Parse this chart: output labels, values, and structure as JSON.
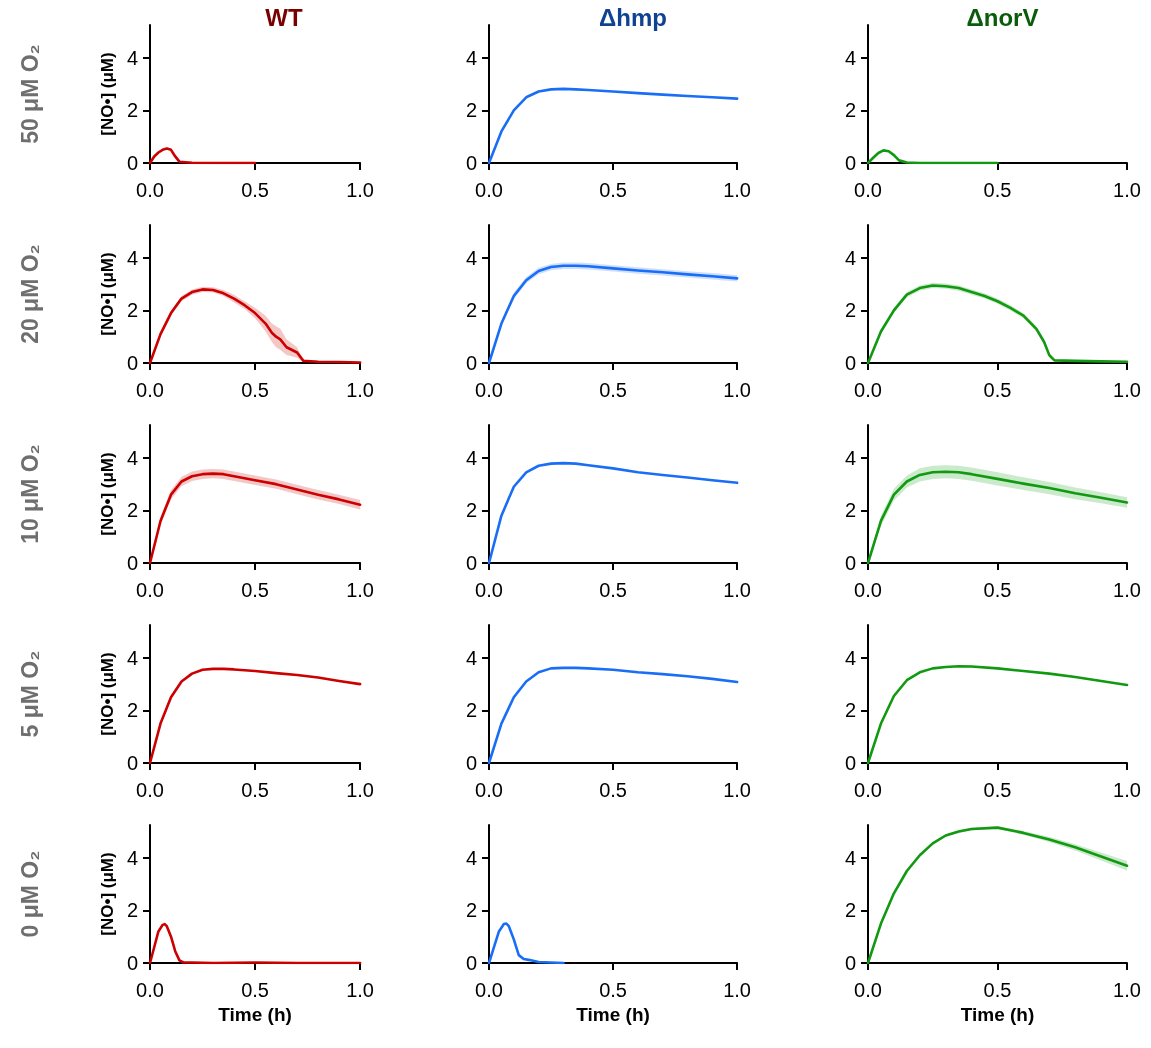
{
  "chart_data": [
    {
      "type": "line",
      "title": "WT",
      "ylabel": "[NO•] (μM)",
      "annotations": [
        "50 μM O₂"
      ],
      "x": [
        0,
        0.02,
        0.04,
        0.06,
        0.08,
        0.1,
        0.12,
        0.14,
        0.2,
        0.3,
        0.4,
        0.5
      ],
      "series": [
        {
          "color": "#cc0000",
          "values": [
            0,
            0.25,
            0.4,
            0.5,
            0.55,
            0.5,
            0.25,
            0.05,
            0.01,
            0,
            0,
            0
          ]
        }
      ],
      "xlim": [
        0,
        1
      ],
      "xticks": [
        {
          "value": 0,
          "label": "0.0"
        },
        {
          "value": 0.5,
          "label": "0.5"
        },
        {
          "value": 1,
          "label": "1.0"
        }
      ],
      "ylim": [
        0,
        5.25
      ],
      "yticks": [
        0,
        2,
        4
      ],
      "grid": false
    },
    {
      "type": "line",
      "title": "Δhmp",
      "x": [
        0,
        0.05,
        0.1,
        0.15,
        0.2,
        0.25,
        0.3,
        0.35,
        0.4,
        0.5,
        0.6,
        0.7,
        0.8,
        0.9,
        1.0
      ],
      "series": [
        {
          "color": "#1a6ef5",
          "values": [
            0,
            1.2,
            2.0,
            2.5,
            2.72,
            2.8,
            2.82,
            2.8,
            2.78,
            2.72,
            2.66,
            2.6,
            2.55,
            2.5,
            2.45
          ]
        }
      ],
      "xlim": [
        0,
        1
      ],
      "xticks": [
        {
          "value": 0,
          "label": "0.0"
        },
        {
          "value": 0.5,
          "label": "0.5"
        },
        {
          "value": 1,
          "label": "1.0"
        }
      ],
      "ylim": [
        0,
        5.25
      ],
      "yticks": [
        0,
        2,
        4
      ],
      "grid": false
    },
    {
      "type": "line",
      "title": "ΔnorV",
      "x": [
        0,
        0.02,
        0.04,
        0.06,
        0.08,
        0.1,
        0.12,
        0.15,
        0.2,
        0.3,
        0.4,
        0.5
      ],
      "series": [
        {
          "color": "#119911",
          "values": [
            0,
            0.2,
            0.38,
            0.48,
            0.45,
            0.3,
            0.1,
            0.02,
            0,
            0,
            0,
            0
          ]
        }
      ],
      "xlim": [
        0,
        1
      ],
      "xticks": [
        {
          "value": 0,
          "label": "0.0"
        },
        {
          "value": 0.5,
          "label": "0.5"
        },
        {
          "value": 1,
          "label": "1.0"
        }
      ],
      "ylim": [
        0,
        5.25
      ],
      "yticks": [
        0,
        2,
        4
      ],
      "grid": false
    },
    {
      "type": "line",
      "ylabel": "[NO•] (μM)",
      "annotations": [
        "20 μM O₂"
      ],
      "x": [
        0,
        0.05,
        0.1,
        0.15,
        0.2,
        0.25,
        0.3,
        0.35,
        0.4,
        0.45,
        0.5,
        0.55,
        0.58,
        0.6,
        0.62,
        0.65,
        0.7,
        0.73,
        0.8,
        0.9,
        1.0
      ],
      "series": [
        {
          "color": "#cc0000",
          "values": [
            0,
            1.1,
            1.9,
            2.45,
            2.7,
            2.8,
            2.78,
            2.65,
            2.45,
            2.2,
            1.9,
            1.5,
            1.15,
            1.0,
            0.9,
            0.6,
            0.4,
            0.08,
            0.05,
            0.04,
            0.02
          ],
          "lower": [
            0,
            1.0,
            1.8,
            2.35,
            2.6,
            2.7,
            2.68,
            2.55,
            2.3,
            2.05,
            1.7,
            1.2,
            0.8,
            0.6,
            0.5,
            0.3,
            0.2,
            0.05,
            0.03,
            0.02,
            0.01
          ],
          "upper": [
            0,
            1.2,
            2.0,
            2.55,
            2.8,
            2.9,
            2.88,
            2.78,
            2.6,
            2.35,
            2.1,
            1.8,
            1.5,
            1.4,
            1.3,
            0.9,
            0.6,
            0.12,
            0.08,
            0.06,
            0.04
          ]
        }
      ],
      "xlim": [
        0,
        1
      ],
      "xticks": [
        {
          "value": 0,
          "label": "0.0"
        },
        {
          "value": 0.5,
          "label": "0.5"
        },
        {
          "value": 1,
          "label": "1.0"
        }
      ],
      "ylim": [
        0,
        5.25
      ],
      "yticks": [
        0,
        2,
        4
      ],
      "grid": false
    },
    {
      "type": "line",
      "x": [
        0,
        0.05,
        0.1,
        0.15,
        0.2,
        0.25,
        0.3,
        0.35,
        0.4,
        0.5,
        0.6,
        0.7,
        0.8,
        0.9,
        1.0
      ],
      "series": [
        {
          "color": "#1a6ef5",
          "values": [
            0,
            1.5,
            2.55,
            3.15,
            3.5,
            3.65,
            3.7,
            3.7,
            3.68,
            3.6,
            3.52,
            3.45,
            3.37,
            3.3,
            3.22
          ],
          "lower": [
            0,
            1.4,
            2.43,
            3.03,
            3.38,
            3.53,
            3.58,
            3.58,
            3.56,
            3.48,
            3.4,
            3.33,
            3.25,
            3.18,
            3.1
          ],
          "upper": [
            0,
            1.6,
            2.67,
            3.27,
            3.62,
            3.77,
            3.82,
            3.82,
            3.8,
            3.72,
            3.64,
            3.57,
            3.49,
            3.42,
            3.34
          ]
        }
      ],
      "xlim": [
        0,
        1
      ],
      "xticks": [
        {
          "value": 0,
          "label": "0.0"
        },
        {
          "value": 0.5,
          "label": "0.5"
        },
        {
          "value": 1,
          "label": "1.0"
        }
      ],
      "ylim": [
        0,
        5.25
      ],
      "yticks": [
        0,
        2,
        4
      ],
      "grid": false
    },
    {
      "type": "line",
      "x": [
        0,
        0.05,
        0.1,
        0.15,
        0.2,
        0.25,
        0.3,
        0.35,
        0.4,
        0.45,
        0.5,
        0.55,
        0.6,
        0.65,
        0.68,
        0.7,
        0.72,
        0.8,
        0.9,
        1.0
      ],
      "series": [
        {
          "color": "#119911",
          "values": [
            0,
            1.2,
            2.0,
            2.6,
            2.85,
            2.95,
            2.92,
            2.85,
            2.7,
            2.55,
            2.35,
            2.1,
            1.8,
            1.3,
            0.8,
            0.3,
            0.1,
            0.08,
            0.06,
            0.05
          ],
          "lower": [
            0,
            1.1,
            1.9,
            2.5,
            2.75,
            2.85,
            2.82,
            2.75,
            2.6,
            2.45,
            2.25,
            2.0,
            1.7,
            1.2,
            0.7,
            0.2,
            0.07,
            0.06,
            0.05,
            0.04
          ],
          "upper": [
            0,
            1.3,
            2.1,
            2.7,
            2.95,
            3.05,
            3.02,
            2.95,
            2.8,
            2.65,
            2.45,
            2.2,
            1.9,
            1.4,
            0.9,
            0.4,
            0.13,
            0.1,
            0.08,
            0.07
          ]
        }
      ],
      "xlim": [
        0,
        1
      ],
      "xticks": [
        {
          "value": 0,
          "label": "0.0"
        },
        {
          "value": 0.5,
          "label": "0.5"
        },
        {
          "value": 1,
          "label": "1.0"
        }
      ],
      "ylim": [
        0,
        5.25
      ],
      "yticks": [
        0,
        2,
        4
      ],
      "grid": false
    },
    {
      "type": "line",
      "ylabel": "[NO•] (μM)",
      "annotations": [
        "10 μM O₂"
      ],
      "x": [
        0,
        0.05,
        0.1,
        0.15,
        0.2,
        0.25,
        0.3,
        0.35,
        0.4,
        0.5,
        0.6,
        0.7,
        0.8,
        0.9,
        1.0
      ],
      "series": [
        {
          "color": "#cc0000",
          "values": [
            0,
            1.6,
            2.6,
            3.1,
            3.3,
            3.38,
            3.4,
            3.38,
            3.3,
            3.15,
            3.0,
            2.8,
            2.6,
            2.42,
            2.22
          ],
          "lower": [
            0,
            1.45,
            2.42,
            2.92,
            3.12,
            3.2,
            3.22,
            3.2,
            3.12,
            2.97,
            2.82,
            2.62,
            2.42,
            2.24,
            2.04
          ],
          "upper": [
            0,
            1.75,
            2.78,
            3.28,
            3.48,
            3.56,
            3.58,
            3.56,
            3.48,
            3.33,
            3.18,
            2.98,
            2.78,
            2.6,
            2.4
          ]
        }
      ],
      "xlim": [
        0,
        1
      ],
      "xticks": [
        {
          "value": 0,
          "label": "0.0"
        },
        {
          "value": 0.5,
          "label": "0.5"
        },
        {
          "value": 1,
          "label": "1.0"
        }
      ],
      "ylim": [
        0,
        5.25
      ],
      "yticks": [
        0,
        2,
        4
      ],
      "grid": false
    },
    {
      "type": "line",
      "x": [
        0,
        0.05,
        0.1,
        0.15,
        0.2,
        0.25,
        0.3,
        0.35,
        0.4,
        0.5,
        0.6,
        0.7,
        0.8,
        0.9,
        1.0
      ],
      "series": [
        {
          "color": "#1a6ef5",
          "values": [
            0,
            1.8,
            2.9,
            3.45,
            3.7,
            3.78,
            3.8,
            3.78,
            3.72,
            3.6,
            3.45,
            3.35,
            3.25,
            3.15,
            3.05
          ]
        }
      ],
      "xlim": [
        0,
        1
      ],
      "xticks": [
        {
          "value": 0,
          "label": "0.0"
        },
        {
          "value": 0.5,
          "label": "0.5"
        },
        {
          "value": 1,
          "label": "1.0"
        }
      ],
      "ylim": [
        0,
        5.25
      ],
      "yticks": [
        0,
        2,
        4
      ],
      "grid": false
    },
    {
      "type": "line",
      "x": [
        0,
        0.05,
        0.1,
        0.15,
        0.2,
        0.25,
        0.3,
        0.35,
        0.4,
        0.5,
        0.6,
        0.7,
        0.8,
        0.9,
        1.0
      ],
      "series": [
        {
          "color": "#119911",
          "values": [
            0,
            1.6,
            2.6,
            3.1,
            3.35,
            3.45,
            3.47,
            3.45,
            3.38,
            3.2,
            3.02,
            2.85,
            2.65,
            2.48,
            2.3
          ],
          "lower": [
            0,
            1.4,
            2.38,
            2.87,
            3.1,
            3.2,
            3.22,
            3.2,
            3.13,
            2.95,
            2.78,
            2.62,
            2.43,
            2.27,
            2.1
          ],
          "upper": [
            0,
            1.8,
            2.82,
            3.33,
            3.6,
            3.7,
            3.72,
            3.7,
            3.63,
            3.45,
            3.26,
            3.08,
            2.87,
            2.69,
            2.5
          ]
        }
      ],
      "xlim": [
        0,
        1
      ],
      "xticks": [
        {
          "value": 0,
          "label": "0.0"
        },
        {
          "value": 0.5,
          "label": "0.5"
        },
        {
          "value": 1,
          "label": "1.0"
        }
      ],
      "ylim": [
        0,
        5.25
      ],
      "yticks": [
        0,
        2,
        4
      ],
      "grid": false
    },
    {
      "type": "line",
      "ylabel": "[NO•] (μM)",
      "annotations": [
        "5 μM O₂"
      ],
      "x": [
        0,
        0.05,
        0.1,
        0.15,
        0.2,
        0.25,
        0.3,
        0.35,
        0.4,
        0.5,
        0.6,
        0.7,
        0.8,
        0.9,
        1.0
      ],
      "series": [
        {
          "color": "#cc0000",
          "values": [
            0,
            1.5,
            2.5,
            3.1,
            3.4,
            3.55,
            3.58,
            3.58,
            3.56,
            3.5,
            3.42,
            3.35,
            3.25,
            3.12,
            3.0
          ]
        }
      ],
      "xlim": [
        0,
        1
      ],
      "xticks": [
        {
          "value": 0,
          "label": "0.0"
        },
        {
          "value": 0.5,
          "label": "0.5"
        },
        {
          "value": 1,
          "label": "1.0"
        }
      ],
      "ylim": [
        0,
        5.25
      ],
      "yticks": [
        0,
        2,
        4
      ],
      "grid": false
    },
    {
      "type": "line",
      "x": [
        0,
        0.05,
        0.1,
        0.15,
        0.2,
        0.25,
        0.3,
        0.35,
        0.4,
        0.5,
        0.6,
        0.7,
        0.8,
        0.9,
        1.0
      ],
      "series": [
        {
          "color": "#1a6ef5",
          "values": [
            0,
            1.5,
            2.5,
            3.1,
            3.45,
            3.6,
            3.62,
            3.62,
            3.6,
            3.55,
            3.45,
            3.38,
            3.3,
            3.2,
            3.08
          ]
        }
      ],
      "xlim": [
        0,
        1
      ],
      "xticks": [
        {
          "value": 0,
          "label": "0.0"
        },
        {
          "value": 0.5,
          "label": "0.5"
        },
        {
          "value": 1,
          "label": "1.0"
        }
      ],
      "ylim": [
        0,
        5.25
      ],
      "yticks": [
        0,
        2,
        4
      ],
      "grid": false
    },
    {
      "type": "line",
      "x": [
        0,
        0.05,
        0.1,
        0.15,
        0.2,
        0.25,
        0.3,
        0.35,
        0.4,
        0.5,
        0.6,
        0.7,
        0.8,
        0.9,
        1.0
      ],
      "series": [
        {
          "color": "#119911",
          "values": [
            0,
            1.5,
            2.55,
            3.15,
            3.45,
            3.6,
            3.65,
            3.68,
            3.67,
            3.6,
            3.5,
            3.4,
            3.27,
            3.12,
            2.97
          ]
        }
      ],
      "xlim": [
        0,
        1
      ],
      "xticks": [
        {
          "value": 0,
          "label": "0.0"
        },
        {
          "value": 0.5,
          "label": "0.5"
        },
        {
          "value": 1,
          "label": "1.0"
        }
      ],
      "ylim": [
        0,
        5.25
      ],
      "yticks": [
        0,
        2,
        4
      ],
      "grid": false
    },
    {
      "type": "line",
      "ylabel": "[NO•] (μM)",
      "xlabel": "Time (h)",
      "annotations": [
        "0 μM O₂"
      ],
      "x": [
        0,
        0.02,
        0.04,
        0.06,
        0.07,
        0.08,
        0.1,
        0.12,
        0.14,
        0.16,
        0.2,
        0.3,
        0.5,
        0.7,
        1.0
      ],
      "series": [
        {
          "color": "#cc0000",
          "values": [
            0,
            0.6,
            1.2,
            1.45,
            1.48,
            1.4,
            1.0,
            0.45,
            0.1,
            0.02,
            0.02,
            0,
            0.02,
            0,
            0
          ]
        }
      ],
      "xlim": [
        0,
        1
      ],
      "xticks": [
        {
          "value": 0,
          "label": "0.0"
        },
        {
          "value": 0.5,
          "label": "0.5"
        },
        {
          "value": 1,
          "label": "1.0"
        }
      ],
      "ylim": [
        0,
        5.25
      ],
      "yticks": [
        0,
        2,
        4
      ],
      "grid": false
    },
    {
      "type": "line",
      "xlabel": "Time (h)",
      "x": [
        0,
        0.02,
        0.04,
        0.06,
        0.07,
        0.08,
        0.1,
        0.12,
        0.14,
        0.16,
        0.2,
        0.25,
        0.3
      ],
      "series": [
        {
          "color": "#1a6ef5",
          "values": [
            0,
            0.6,
            1.2,
            1.48,
            1.5,
            1.4,
            0.9,
            0.3,
            0.15,
            0.12,
            0.04,
            0.02,
            0
          ]
        }
      ],
      "xlim": [
        0,
        1
      ],
      "xticks": [
        {
          "value": 0,
          "label": "0.0"
        },
        {
          "value": 0.5,
          "label": "0.5"
        },
        {
          "value": 1,
          "label": "1.0"
        }
      ],
      "ylim": [
        0,
        5.25
      ],
      "yticks": [
        0,
        2,
        4
      ],
      "grid": false
    },
    {
      "type": "line",
      "xlabel": "Time (h)",
      "x": [
        0,
        0.05,
        0.1,
        0.15,
        0.2,
        0.25,
        0.3,
        0.35,
        0.4,
        0.5,
        0.6,
        0.7,
        0.8,
        0.9,
        1.0
      ],
      "series": [
        {
          "color": "#119911",
          "values": [
            0,
            1.5,
            2.65,
            3.5,
            4.1,
            4.55,
            4.85,
            5.0,
            5.1,
            5.15,
            4.95,
            4.7,
            4.4,
            4.05,
            3.7
          ],
          "lower": [
            0,
            1.45,
            2.6,
            3.45,
            4.05,
            4.5,
            4.8,
            4.95,
            5.05,
            5.1,
            4.88,
            4.6,
            4.28,
            3.9,
            3.52
          ],
          "upper": [
            0,
            1.55,
            2.7,
            3.55,
            4.15,
            4.6,
            4.9,
            5.05,
            5.15,
            5.2,
            5.02,
            4.8,
            4.52,
            4.2,
            3.88
          ]
        }
      ],
      "xlim": [
        0,
        1
      ],
      "xticks": [
        {
          "value": 0,
          "label": "0.0"
        },
        {
          "value": 0.5,
          "label": "0.5"
        },
        {
          "value": 1,
          "label": "1.0"
        }
      ],
      "ylim": [
        0,
        5.25
      ],
      "yticks": [
        0,
        2,
        4
      ],
      "grid": false
    }
  ]
}
